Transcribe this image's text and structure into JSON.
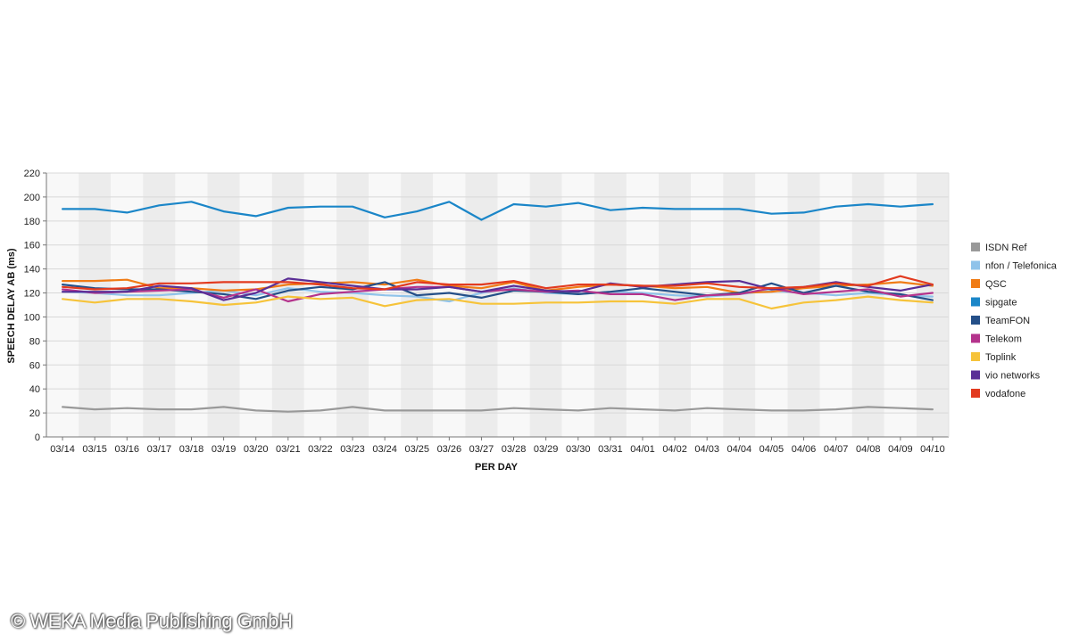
{
  "chart_data": {
    "type": "line",
    "xlabel": "PER DAY",
    "ylabel": "SPEECH DELAY AB (ms)",
    "ylim": [
      0,
      220
    ],
    "yticks": [
      0,
      20,
      40,
      60,
      80,
      100,
      120,
      140,
      160,
      180,
      200,
      220
    ],
    "grid": true,
    "legend_position": "right",
    "categories": [
      "03/14",
      "03/15",
      "03/16",
      "03/17",
      "03/18",
      "03/19",
      "03/20",
      "03/21",
      "03/22",
      "03/23",
      "03/24",
      "03/25",
      "03/26",
      "03/27",
      "03/28",
      "03/29",
      "03/30",
      "03/31",
      "04/01",
      "04/02",
      "04/03",
      "04/04",
      "04/05",
      "04/06",
      "04/07",
      "04/08",
      "04/09",
      "04/10"
    ],
    "series": [
      {
        "name": "ISDN Ref",
        "color": "#999999",
        "values": [
          25,
          23,
          24,
          23,
          23,
          25,
          22,
          21,
          22,
          25,
          22,
          22,
          22,
          22,
          24,
          23,
          22,
          24,
          23,
          22,
          24,
          23,
          22,
          22,
          23,
          25,
          24,
          23
        ]
      },
      {
        "name": "nfon / Telefonica",
        "color": "#8fc3ea",
        "values": [
          121,
          120,
          118,
          118,
          120,
          122,
          118,
          124,
          121,
          120,
          118,
          117,
          113,
          120,
          124,
          120,
          119,
          121,
          120,
          118,
          117,
          119,
          122,
          120,
          118,
          120,
          118,
          117
        ]
      },
      {
        "name": "QSC",
        "color": "#f07c16",
        "values": [
          130,
          130,
          131,
          124,
          124,
          122,
          123,
          127,
          128,
          129,
          127,
          131,
          126,
          124,
          129,
          122,
          125,
          127,
          126,
          124,
          125,
          120,
          121,
          124,
          126,
          127,
          129,
          126
        ]
      },
      {
        "name": "sipgate",
        "color": "#1b86c8",
        "values": [
          190,
          190,
          187,
          193,
          196,
          188,
          184,
          191,
          192,
          192,
          183,
          188,
          196,
          181,
          194,
          192,
          195,
          189,
          191,
          190,
          190,
          190,
          186,
          187,
          192,
          194,
          192,
          194
        ]
      },
      {
        "name": "TeamFON",
        "color": "#244f88",
        "values": [
          127,
          124,
          123,
          123,
          121,
          119,
          115,
          122,
          125,
          123,
          129,
          118,
          120,
          116,
          122,
          121,
          119,
          121,
          124,
          121,
          118,
          120,
          128,
          120,
          126,
          121,
          119,
          114
        ]
      },
      {
        "name": "Telekom",
        "color": "#b4338c",
        "values": [
          123,
          120,
          121,
          122,
          123,
          116,
          123,
          113,
          119,
          121,
          123,
          125,
          125,
          121,
          123,
          121,
          122,
          119,
          119,
          114,
          118,
          119,
          124,
          119,
          121,
          123,
          117,
          120
        ]
      },
      {
        "name": "Toplink",
        "color": "#f6c33a",
        "values": [
          115,
          112,
          115,
          115,
          113,
          110,
          112,
          117,
          115,
          116,
          109,
          114,
          115,
          111,
          111,
          112,
          112,
          113,
          113,
          111,
          115,
          115,
          107,
          112,
          114,
          117,
          114,
          112
        ]
      },
      {
        "name": "vio networks",
        "color": "#5a2e96",
        "values": [
          121,
          121,
          121,
          126,
          124,
          114,
          120,
          132,
          129,
          126,
          123,
          123,
          125,
          121,
          126,
          122,
          121,
          128,
          125,
          127,
          129,
          130,
          123,
          125,
          129,
          125,
          122,
          127
        ]
      },
      {
        "name": "vodafone",
        "color": "#e23a1f",
        "values": [
          125,
          123,
          124,
          128,
          128,
          129,
          129,
          129,
          127,
          124,
          123,
          129,
          127,
          127,
          130,
          124,
          127,
          127,
          126,
          126,
          128,
          125,
          124,
          125,
          128,
          126,
          134,
          127
        ]
      }
    ]
  },
  "watermark": {
    "text": "© WEKA Media Publishing GmbH"
  }
}
